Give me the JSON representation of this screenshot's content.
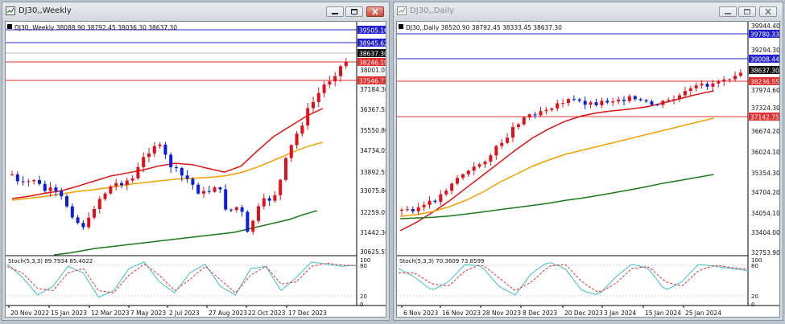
{
  "windows": [
    {
      "title": "DJ30,,Weekly",
      "ohlc_line": "DJ30,,Weekly  38088.90 38792.45 38036.30 38637.30",
      "stoch_label": "Stoch(5,3,3) 89.7934 85.4022",
      "price_labels": [
        "39505.16",
        "38945.62",
        "38637.30",
        "38246.19",
        "38001.05",
        "37546.77",
        "37184.30",
        "36367.55",
        "35550.80",
        "34734.05",
        "33892.55",
        "33075.80",
        "32259.05",
        "31442.30",
        "30625.55"
      ],
      "stoch_labels": [
        "100",
        "80",
        "20",
        "0"
      ],
      "time_labels": [
        "20 Nov 2022",
        "15 Jan 2023",
        "12 Mar 2023",
        "7 May 2023",
        "2 Jul 2023",
        "27 Aug 2023",
        "22 Oct 2023",
        "17 Dec 2023"
      ]
    },
    {
      "title": "DJ30,,Daily",
      "ohlc_line": "DJ30,,Daily  38520.90 38792.45 38333.45 38637.30",
      "stoch_label": "Stoch(5,3,3) 70.3609 73.8599",
      "price_labels": [
        "39944.40",
        "39780.33",
        "39294.30",
        "39008.44",
        "38637.30",
        "38236.55",
        "37974.60",
        "37324.30",
        "37142.75",
        "36674.20",
        "36024.10",
        "35354.30",
        "34704.20",
        "34054.10",
        "33404.00",
        "32753.90"
      ],
      "stoch_labels": [
        "100",
        "80",
        "20",
        "0"
      ],
      "time_labels": [
        "6 Nov 2023",
        "16 Nov 2023",
        "28 Nov 2023",
        "8 Dec 2023",
        "20 Dec 2023",
        "3 Jan 2024",
        "15 Jan 2024",
        "25 Jan 2024"
      ]
    }
  ],
  "colors": {
    "bull": "#0a1ed8",
    "bear": "#e0101a",
    "ma_fast": "#e01010",
    "ma_mid": "#f5a000",
    "ma_slow": "#1a7a1a",
    "resistance_line": "#2020d0",
    "support_line": "#e03030",
    "stoch_main": "#3cc0c8",
    "stoch_signal": "#e03030",
    "current_price_bg": "#111111"
  }
}
